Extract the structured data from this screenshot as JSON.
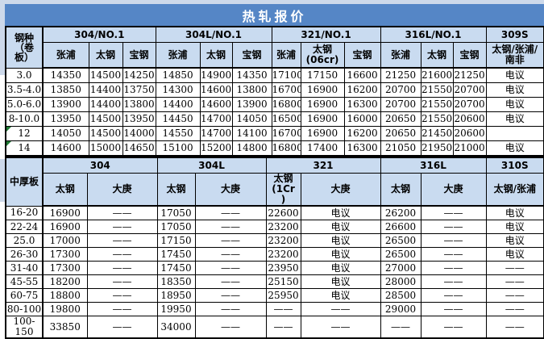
{
  "title": "热轧报价",
  "colors": {
    "title_bar": "#5586C6",
    "header_fill": "#C9DBF0",
    "page_margin": "#CDD9EA",
    "comment_marker": "#1F7A33"
  },
  "section1": {
    "corner_label": "钢种\n（卷\n板）",
    "groups": [
      {
        "label": "304/NO.1",
        "mills": [
          "张浦",
          "太钢",
          "宝钢"
        ]
      },
      {
        "label": "304L/NO.1",
        "mills": [
          "张浦",
          "太钢",
          "宝钢"
        ]
      },
      {
        "label": "321/NO.1",
        "mills": [
          "张浦",
          "太钢\n(06cr)",
          "宝钢"
        ]
      },
      {
        "label": "316L/NO.1",
        "mills": [
          "张浦",
          "太钢",
          "宝钢"
        ]
      },
      {
        "label": "309S",
        "mills": [
          "太钢/张浦/\n南非"
        ]
      }
    ],
    "rows": [
      {
        "label": "3.0",
        "comment": false,
        "values": [
          "14350",
          "14500",
          "14250",
          "14850",
          "14900",
          "14350",
          "17100",
          "17150",
          "16600",
          "21250",
          "21600",
          "21250",
          "电议"
        ]
      },
      {
        "label": "3.5-4.0",
        "comment": false,
        "values": [
          "13850",
          "14400",
          "13750",
          "14300",
          "14600",
          "13800",
          "16700",
          "16900",
          "16200",
          "20700",
          "21550",
          "20700",
          "电议"
        ]
      },
      {
        "label": "5.0-6.0",
        "comment": false,
        "values": [
          "13900",
          "14400",
          "13800",
          "14400",
          "14600",
          "13900",
          "16800",
          "16900",
          "16300",
          "20700",
          "21550",
          "20700",
          "电议"
        ]
      },
      {
        "label": "8-10.0",
        "comment": false,
        "values": [
          "13950",
          "14500",
          "13950",
          "14450",
          "14700",
          "14050",
          "16500",
          "16900",
          "16000",
          "20650",
          "21550",
          "20600",
          "电议"
        ]
      },
      {
        "label": "12",
        "comment": true,
        "values": [
          "14050",
          "14500",
          "14000",
          "14550",
          "14700",
          "14100",
          "16700",
          "16900",
          "16200",
          "20650",
          "21450",
          "20600",
          ""
        ]
      },
      {
        "label": "14",
        "comment": true,
        "values": [
          "14600",
          "15000",
          "14650",
          "15100",
          "15200",
          "14800",
          "16800",
          "17400",
          "16300",
          "21050",
          "21950",
          "21000",
          "电议"
        ]
      }
    ]
  },
  "section2": {
    "corner_label": "中厚板",
    "groups": [
      {
        "label": "304",
        "mills": [
          "太钢",
          "大庚"
        ]
      },
      {
        "label": "304L",
        "mills": [
          "太钢",
          "大庚"
        ]
      },
      {
        "label": "321",
        "mills": [
          "太钢\n(1Cr\n)",
          "大庚"
        ]
      },
      {
        "label": "316L",
        "mills": [
          "太钢",
          "大庚"
        ]
      },
      {
        "label": "310S",
        "mills": [
          "太钢/张浦"
        ]
      }
    ],
    "rows": [
      {
        "label": "16-20",
        "comment": false,
        "values": [
          "16900",
          "——",
          "17050",
          "——",
          "22600",
          "电议",
          "26200",
          "——",
          "电议"
        ]
      },
      {
        "label": "22-24",
        "comment": false,
        "values": [
          "16900",
          "——",
          "17050",
          "——",
          "23200",
          "电议",
          "26600",
          "——",
          "电议"
        ]
      },
      {
        "label": "25.0",
        "comment": false,
        "values": [
          "17000",
          "——",
          "17150",
          "——",
          "23200",
          "电议",
          "26500",
          "——",
          "电议"
        ]
      },
      {
        "label": "26-30",
        "comment": false,
        "values": [
          "17300",
          "——",
          "17450",
          "——",
          "23200",
          "电议",
          "26500",
          "——",
          "电议"
        ]
      },
      {
        "label": "31-40",
        "comment": false,
        "values": [
          "17300",
          "——",
          "17450",
          "——",
          "23950",
          "电议",
          "27000",
          "——",
          "——"
        ]
      },
      {
        "label": "45-55",
        "comment": false,
        "values": [
          "18200",
          "——",
          "18350",
          "——",
          "25150",
          "电议",
          "28000",
          "——",
          "——"
        ]
      },
      {
        "label": "60-75",
        "comment": false,
        "values": [
          "18800",
          "——",
          "18950",
          "——",
          "25950",
          "电议",
          "28500",
          "——",
          "——"
        ]
      },
      {
        "label": "80-100",
        "comment": false,
        "values": [
          "19800",
          "——",
          "19950",
          "——",
          "——",
          "——",
          "29000",
          "——",
          "——"
        ]
      },
      {
        "label": "100-150",
        "comment": false,
        "values": [
          "33850",
          "——",
          "34000",
          "——",
          "——",
          "——",
          "——",
          "——",
          "——"
        ]
      }
    ]
  }
}
